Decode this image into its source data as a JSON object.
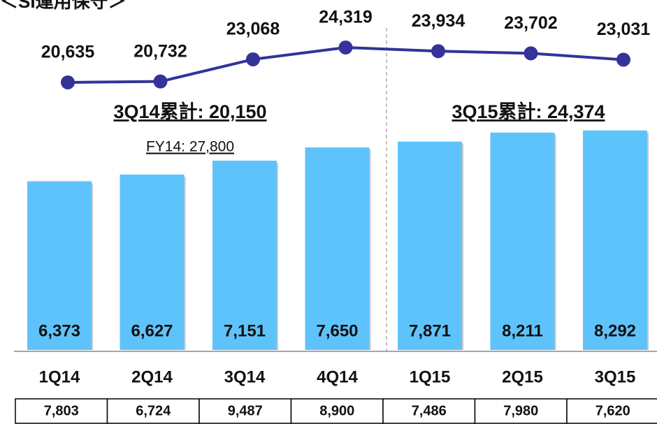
{
  "chart_data": {
    "type": "bar_line",
    "title": "＜SI運用保守＞",
    "categories": [
      "1Q14",
      "2Q14",
      "3Q14",
      "4Q14",
      "1Q15",
      "2Q15",
      "3Q15"
    ],
    "bars": {
      "color": "#5fc3fb",
      "values": [
        6373,
        6627,
        7151,
        7650,
        7871,
        8211,
        8292
      ],
      "value_labels": [
        "6,373",
        "6,627",
        "7,151",
        "7,650",
        "7,871",
        "8,211",
        "8,292"
      ]
    },
    "line": {
      "color": "#33339a",
      "values": [
        20635,
        20732,
        23068,
        24319,
        23934,
        23702,
        23031
      ],
      "value_labels": [
        "20,635",
        "20,732",
        "23,068",
        "24,319",
        "23,934",
        "23,702",
        "23,031"
      ]
    },
    "table": {
      "values": [
        7803,
        6724,
        9487,
        8900,
        7486,
        7980,
        7620
      ],
      "value_labels": [
        "7,803",
        "6,724",
        "9,487",
        "8,900",
        "7,486",
        "7,980",
        "7,620"
      ]
    },
    "annotations": [
      "3Q14累計: 20,150",
      "3Q15累計: 24,374",
      "FY14: 27,800"
    ]
  }
}
